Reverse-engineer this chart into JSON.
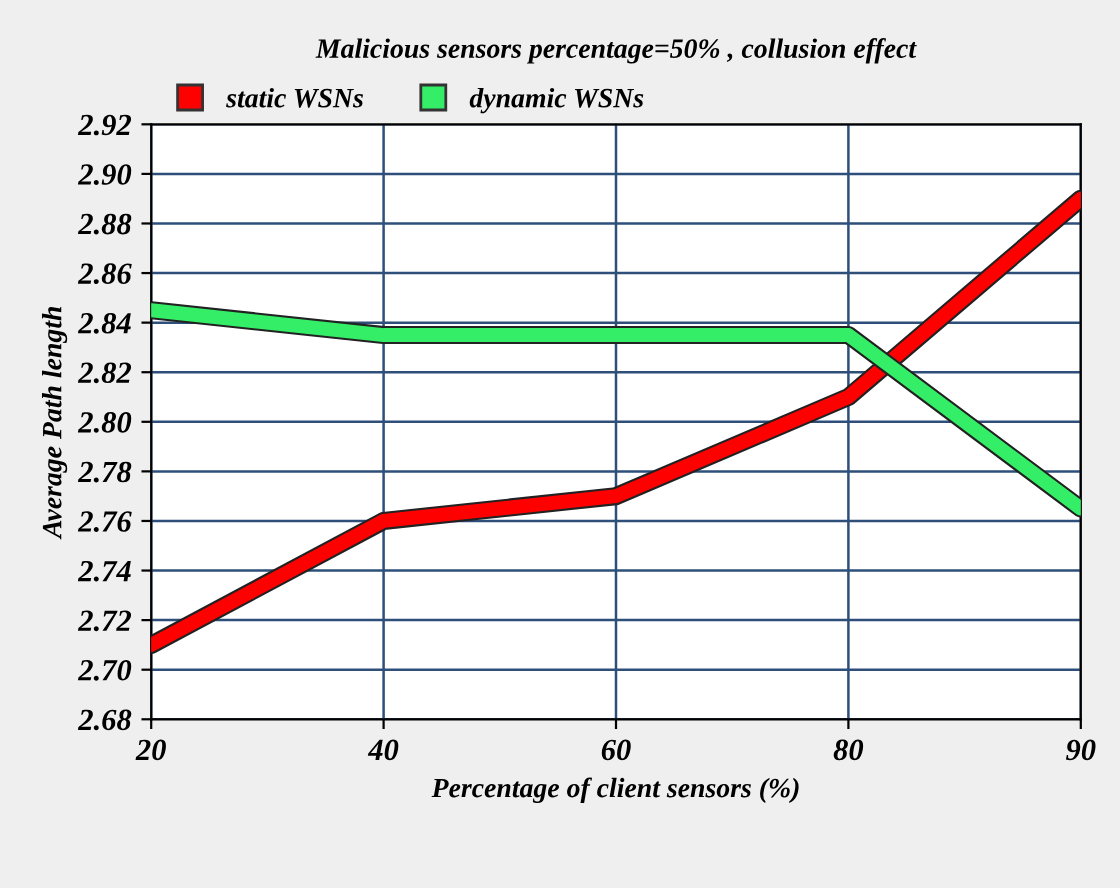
{
  "chart_data": {
    "type": "line",
    "title": "Malicious sensors percentage=50% , collusion effect",
    "xlabel": "Percentage of client sensors (%)",
    "ylabel": "Average Path length",
    "categories": [
      "20",
      "40",
      "60",
      "80",
      "90"
    ],
    "series": [
      {
        "name": "static WSNs",
        "color": "#ff0000",
        "values": [
          2.71,
          2.76,
          2.77,
          2.81,
          2.89
        ]
      },
      {
        "name": "dynamic WSNs",
        "color": "#33ee66",
        "values": [
          2.845,
          2.835,
          2.835,
          2.835,
          2.765
        ]
      }
    ],
    "ylim": [
      2.68,
      2.92
    ],
    "yticks": [
      2.68,
      {
        "value": 2.7,
        "label": "2.70"
      },
      2.72,
      2.74,
      2.76,
      2.78,
      {
        "value": 2.8,
        "label": "2.80"
      },
      2.82,
      2.84,
      2.86,
      2.88,
      {
        "value": 2.9,
        "label": "2.90"
      },
      2.92
    ],
    "grid": true,
    "legend": "top left",
    "marker": "none",
    "line_style": "solid"
  }
}
